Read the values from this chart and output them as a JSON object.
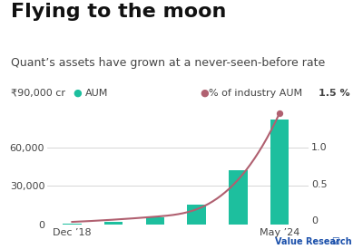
{
  "title": "Flying to the moon",
  "subtitle": "Quant’s assets have grown at a never-seen-before rate",
  "bar_x": [
    0,
    1,
    2,
    3,
    4,
    5
  ],
  "bar_heights": [
    200,
    1500,
    5000,
    15000,
    42000,
    82000
  ],
  "bar_color": "#1dbf9e",
  "line_y": [
    -0.02,
    0.01,
    0.05,
    0.15,
    0.55,
    1.45
  ],
  "ylim_left": [
    0,
    90000
  ],
  "ylim_right": [
    -0.05,
    1.5
  ],
  "yticks_left": [
    0,
    30000,
    60000
  ],
  "yticks_right": [
    0,
    0.5,
    1.0
  ],
  "xtick_labels": [
    "Dec ’18",
    "",
    "",
    "",
    "",
    "May ’24"
  ],
  "left_axis_label": "₹90,000 cr",
  "legend_aum_label": "AUM",
  "legend_pct_label": "% of industry AUM",
  "legend_pct_value": "1.5 %",
  "bar_color_dot": "#1dbf9e",
  "line_color": "#b06070",
  "watermark": "Value Research",
  "background_color": "#ffffff",
  "title_fontsize": 16,
  "subtitle_fontsize": 9,
  "tick_fontsize": 8,
  "legend_fontsize": 8,
  "grid_color": "#d0d0d0",
  "text_color": "#444444",
  "watermark_color": "#1a4faa"
}
